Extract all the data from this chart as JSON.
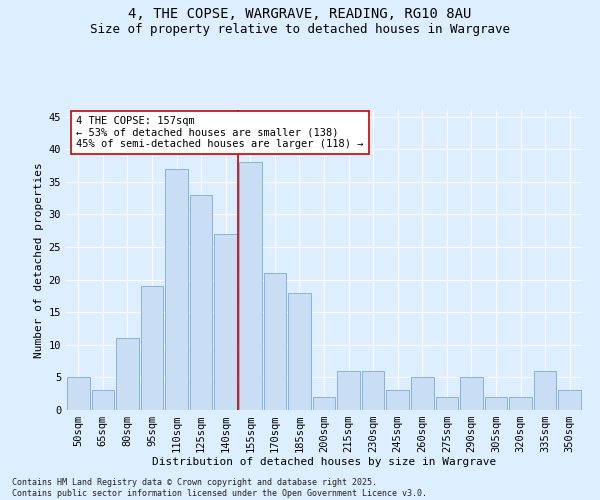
{
  "title": "4, THE COPSE, WARGRAVE, READING, RG10 8AU",
  "subtitle": "Size of property relative to detached houses in Wargrave",
  "xlabel": "Distribution of detached houses by size in Wargrave",
  "ylabel": "Number of detached properties",
  "categories": [
    "50sqm",
    "65sqm",
    "80sqm",
    "95sqm",
    "110sqm",
    "125sqm",
    "140sqm",
    "155sqm",
    "170sqm",
    "185sqm",
    "200sqm",
    "215sqm",
    "230sqm",
    "245sqm",
    "260sqm",
    "275sqm",
    "290sqm",
    "305sqm",
    "320sqm",
    "335sqm",
    "350sqm"
  ],
  "values": [
    5,
    3,
    11,
    19,
    37,
    33,
    27,
    38,
    21,
    18,
    2,
    6,
    6,
    3,
    5,
    2,
    5,
    2,
    2,
    6,
    3
  ],
  "bar_color": "#c9ddf5",
  "bar_edge_color": "#7baad4",
  "vline_index": 7,
  "vline_color": "#cc0000",
  "annotation_text": "4 THE COPSE: 157sqm\n← 53% of detached houses are smaller (138)\n45% of semi-detached houses are larger (118) →",
  "annotation_box_color": "#ffffff",
  "annotation_box_edge": "#cc0000",
  "bg_color": "#ddeeff",
  "plot_bg_color": "#ddeeff",
  "grid_color": "#ffffff",
  "ylim": [
    0,
    46
  ],
  "yticks": [
    0,
    5,
    10,
    15,
    20,
    25,
    30,
    35,
    40,
    45
  ],
  "footnote": "Contains HM Land Registry data © Crown copyright and database right 2025.\nContains public sector information licensed under the Open Government Licence v3.0.",
  "title_fontsize": 10,
  "subtitle_fontsize": 9,
  "axis_fontsize": 8,
  "tick_fontsize": 7.5
}
